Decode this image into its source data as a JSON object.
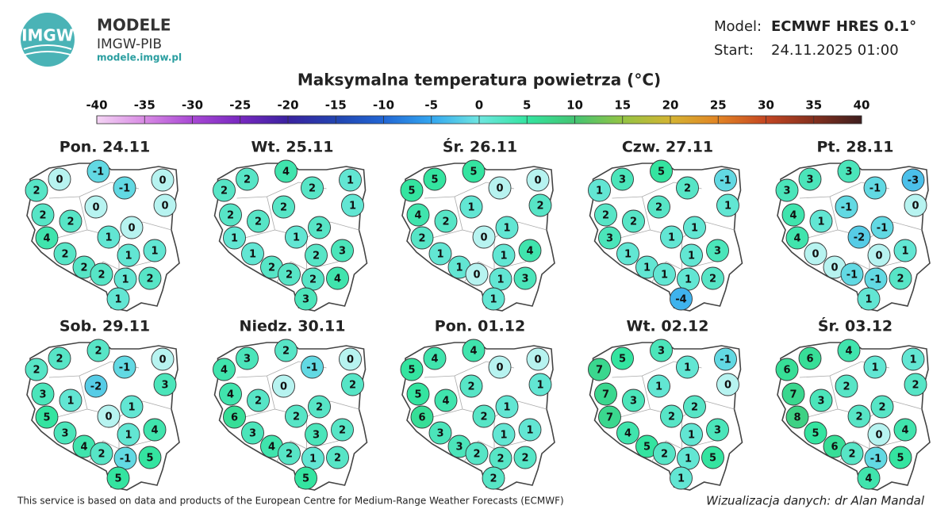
{
  "header": {
    "logo": "IMGW",
    "brand": "MODELE",
    "org": "IMGW-PIB",
    "url": "modele.imgw.pl",
    "model_label": "Model:",
    "model": "ECMWF HRES 0.1°",
    "start_label": "Start:",
    "start": "24.11.2025 01:00"
  },
  "title": "Maksymalna temperatura powietrza (°C)",
  "colorbar": {
    "ticks": [
      -40,
      -35,
      -30,
      -25,
      -20,
      -15,
      -10,
      -5,
      0,
      5,
      10,
      15,
      20,
      25,
      30,
      35,
      40
    ]
  },
  "panels": [
    {
      "day": "Pon. 24.11",
      "values": [
        0,
        -1,
        -1,
        0,
        2,
        0,
        0,
        2,
        2,
        0,
        4,
        1,
        2,
        1,
        1,
        2,
        2,
        1,
        2,
        1
      ]
    },
    {
      "day": "Wt. 25.11",
      "values": [
        2,
        4,
        2,
        1,
        2,
        2,
        1,
        2,
        2,
        2,
        1,
        1,
        1,
        2,
        3,
        2,
        2,
        2,
        4,
        3
      ]
    },
    {
      "day": "Śr. 26.11",
      "values": [
        5,
        5,
        0,
        0,
        5,
        1,
        2,
        4,
        2,
        1,
        2,
        0,
        1,
        1,
        4,
        1,
        0,
        1,
        3,
        1
      ]
    },
    {
      "day": "Czw. 27.11",
      "values": [
        3,
        5,
        2,
        -1,
        1,
        2,
        1,
        2,
        2,
        1,
        3,
        1,
        1,
        1,
        3,
        1,
        1,
        1,
        2,
        -4
      ]
    },
    {
      "day": "Pt. 28.11",
      "values": [
        3,
        3,
        -1,
        -3,
        3,
        -1,
        0,
        4,
        1,
        -1,
        4,
        -2,
        0,
        0,
        1,
        0,
        -1,
        -1,
        2,
        1
      ]
    },
    {
      "day": "Sob. 29.11",
      "values": [
        2,
        2,
        -1,
        0,
        2,
        -2,
        3,
        3,
        1,
        1,
        5,
        0,
        3,
        1,
        4,
        4,
        2,
        -1,
        5,
        5
      ]
    },
    {
      "day": "Niedz. 30.11",
      "values": [
        3,
        2,
        -1,
        0,
        4,
        0,
        2,
        4,
        2,
        2,
        6,
        2,
        3,
        3,
        2,
        4,
        2,
        1,
        2,
        5
      ]
    },
    {
      "day": "Pon. 01.12",
      "values": [
        4,
        4,
        0,
        0,
        5,
        2,
        1,
        5,
        4,
        1,
        6,
        2,
        3,
        1,
        1,
        3,
        2,
        2,
        2,
        2
      ]
    },
    {
      "day": "Wt. 02.12",
      "values": [
        5,
        3,
        1,
        -1,
        7,
        1,
        0,
        7,
        3,
        2,
        7,
        2,
        4,
        1,
        3,
        5,
        2,
        1,
        5,
        1
      ]
    },
    {
      "day": "Śr. 03.12",
      "values": [
        6,
        4,
        1,
        1,
        6,
        2,
        2,
        7,
        3,
        2,
        8,
        2,
        5,
        0,
        4,
        6,
        2,
        -1,
        5,
        4
      ]
    }
  ],
  "footer": {
    "source": "This service is based on data and products of the European Centre for Medium-Range Weather Forecasts (ECMWF)",
    "credit": "Wizualizacja danych: dr Alan Mandal"
  }
}
